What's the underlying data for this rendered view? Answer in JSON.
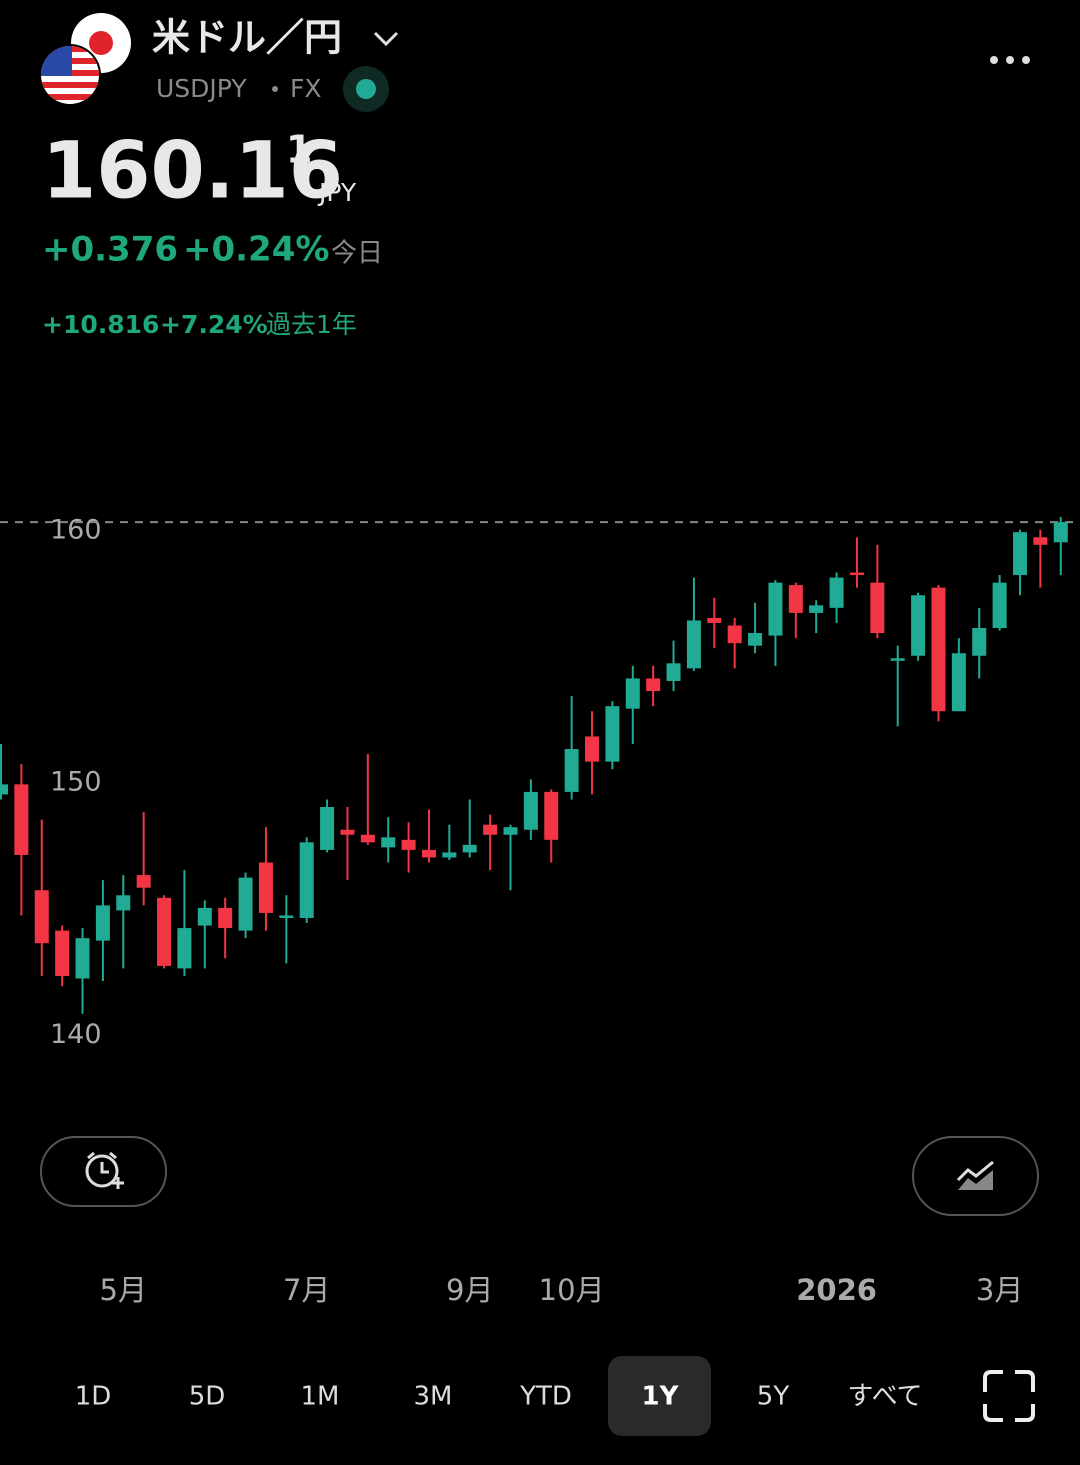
{
  "header": {
    "title": "米ドル／円",
    "symbol": "USDJPY",
    "market": "FX",
    "price": "160.16",
    "price_sup": "1",
    "currency": "JPY",
    "change": "+0.376",
    "change_pct": "+0.24%",
    "change_label": "今日",
    "year_change": "+10.816",
    "year_change_pct": "+7.24%",
    "year_label": "過去1年"
  },
  "chart_data": {
    "type": "candlestick",
    "categories": [
      null,
      null,
      null,
      null,
      null,
      null,
      "5月",
      null,
      null,
      null,
      null,
      null,
      null,
      null,
      null,
      "7月",
      null,
      null,
      null,
      null,
      null,
      null,
      null,
      "9月",
      null,
      null,
      null,
      null,
      "10月",
      null,
      null,
      null,
      null,
      null,
      null,
      null,
      null,
      null,
      null,
      null,
      null,
      "2026",
      null,
      null,
      null,
      null,
      null,
      null,
      null,
      "3月",
      null,
      null,
      null
    ],
    "open": [
      149.0,
      149.4,
      145.2,
      143.6,
      141.7,
      143.2,
      144.4,
      145.8,
      144.9,
      142.1,
      143.8,
      144.5,
      143.6,
      146.3,
      144.1,
      144.1,
      146.8,
      147.6,
      147.4,
      146.9,
      147.2,
      146.8,
      146.5,
      146.7,
      147.8,
      147.4,
      147.6,
      149.1,
      149.1,
      151.3,
      150.3,
      152.4,
      153.6,
      153.5,
      154.0,
      156.0,
      155.7,
      154.9,
      155.3,
      157.3,
      156.2,
      156.4,
      157.8,
      157.4,
      154.3,
      154.5,
      157.2,
      152.3,
      154.5,
      155.6,
      157.7,
      159.2,
      159.0
    ],
    "high": [
      151.0,
      150.2,
      148.0,
      143.8,
      143.7,
      145.6,
      145.8,
      148.3,
      145.0,
      146.0,
      144.8,
      144.9,
      145.9,
      147.7,
      145.0,
      147.3,
      148.8,
      148.5,
      150.6,
      148.1,
      147.9,
      148.4,
      147.8,
      148.8,
      148.2,
      147.8,
      149.6,
      149.2,
      152.9,
      152.3,
      152.7,
      154.1,
      154.1,
      155.1,
      157.6,
      156.8,
      156.0,
      156.6,
      157.5,
      157.4,
      156.7,
      157.8,
      159.2,
      158.9,
      154.9,
      157.0,
      157.3,
      155.2,
      156.4,
      157.7,
      159.5,
      159.5,
      160.0
    ],
    "low": [
      148.8,
      144.2,
      141.8,
      141.4,
      140.3,
      141.6,
      142.1,
      144.6,
      142.1,
      141.8,
      142.1,
      142.5,
      143.3,
      143.6,
      142.3,
      143.9,
      146.7,
      145.6,
      147.0,
      146.3,
      145.9,
      146.3,
      146.4,
      146.5,
      146.0,
      145.2,
      147.2,
      146.3,
      148.8,
      149.0,
      150.0,
      151.0,
      152.5,
      153.1,
      153.9,
      154.8,
      154.0,
      154.6,
      154.1,
      155.2,
      155.4,
      155.8,
      157.2,
      155.2,
      151.7,
      154.3,
      151.9,
      152.3,
      153.6,
      155.5,
      156.9,
      157.2,
      157.7
    ],
    "close": [
      149.4,
      146.6,
      143.1,
      141.8,
      143.3,
      144.6,
      145.0,
      145.3,
      142.2,
      143.7,
      144.5,
      143.7,
      145.7,
      144.3,
      144.2,
      147.1,
      148.5,
      147.4,
      147.1,
      147.3,
      146.8,
      146.5,
      146.7,
      147.0,
      147.4,
      147.7,
      149.1,
      147.2,
      150.8,
      150.3,
      152.5,
      153.6,
      153.1,
      154.2,
      155.9,
      155.8,
      155.0,
      155.4,
      157.4,
      156.2,
      156.5,
      157.6,
      157.7,
      155.4,
      154.4,
      156.9,
      152.3,
      154.6,
      155.6,
      157.4,
      159.4,
      158.9,
      159.8
    ],
    "up_color": "#22ab94",
    "down_color": "#f23645",
    "ylim": [
      137,
      165
    ],
    "yticks": [
      140,
      150,
      160
    ],
    "last_price_line": true
  },
  "ranges": {
    "options": [
      "1D",
      "5D",
      "1M",
      "3M",
      "YTD",
      "1Y",
      "5Y",
      "すべて"
    ],
    "selected_index": 5
  }
}
